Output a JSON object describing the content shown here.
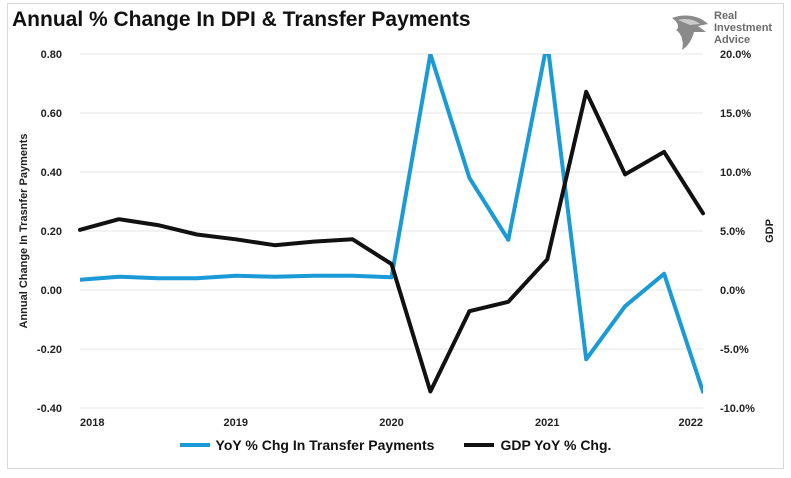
{
  "title": "Annual % Change In DPI & Transfer Payments",
  "logo": {
    "line1": "Real",
    "line2": "Investment",
    "line3": "Advice"
  },
  "colors": {
    "transfer": "#1a9ad6",
    "gdp": "#111111",
    "grid": "#e4e4e4",
    "axis": "#222222"
  },
  "chart_data": {
    "type": "line",
    "title": "Annual % Change In DPI & Transfer Payments",
    "xlabel": "",
    "ylabel_left": "Annual Change In Trasnfer Payments",
    "ylabel_right": "GDP",
    "left_ylim": [
      -0.4,
      0.8
    ],
    "right_ylim": [
      -10,
      20
    ],
    "grid": true,
    "legend_position": "bottom",
    "x_ticks": [
      "2018",
      "2019",
      "2020",
      "2021",
      "2022"
    ],
    "left_ticks": [
      "0.80",
      "0.60",
      "0.40",
      "0.20",
      "0.00",
      "-0.20",
      "-0.40"
    ],
    "right_ticks": [
      "20.0%",
      "15.0%",
      "10.0%",
      "5.0%",
      "0.0%",
      "-5.0%",
      "-10.0%"
    ],
    "series": [
      {
        "name": "YoY % Chg In Transfer Payments",
        "axis": "left",
        "x": [
          2018.0,
          2018.25,
          2018.5,
          2018.75,
          2019.0,
          2019.25,
          2019.5,
          2019.75,
          2020.0,
          2020.25,
          2020.5,
          2020.75,
          2021.0,
          2021.25,
          2021.5,
          2021.75,
          2022.0
        ],
        "values": [
          0.035,
          0.045,
          0.04,
          0.04,
          0.048,
          0.045,
          0.048,
          0.048,
          0.043,
          0.8,
          0.38,
          0.17,
          0.84,
          -0.235,
          -0.055,
          0.055,
          -0.345
        ]
      },
      {
        "name": "GDP YoY % Chg.",
        "axis": "right",
        "x": [
          2018.0,
          2018.25,
          2018.5,
          2018.75,
          2019.0,
          2019.25,
          2019.5,
          2019.75,
          2020.0,
          2020.25,
          2020.5,
          2020.75,
          2021.0,
          2021.25,
          2021.5,
          2021.75,
          2022.0
        ],
        "values": [
          5.1,
          6.0,
          5.5,
          4.7,
          4.3,
          3.8,
          4.1,
          4.3,
          2.2,
          -8.6,
          -1.8,
          -1.0,
          2.6,
          16.8,
          9.8,
          11.7,
          6.5
        ]
      }
    ]
  }
}
